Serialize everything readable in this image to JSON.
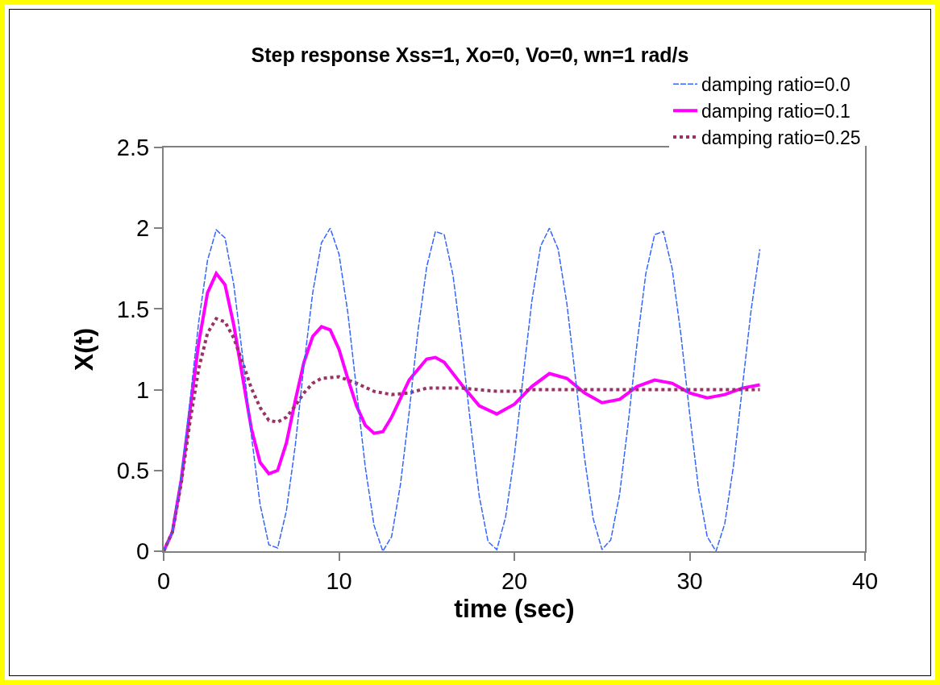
{
  "chart_data": {
    "type": "line",
    "title": "Step response Xss=1, Xo=0, Vo=0, wn=1 rad/s",
    "xlabel": "time (sec)",
    "ylabel": "X(t)",
    "xlim": [
      0,
      40
    ],
    "xticks": [
      0,
      10,
      20,
      30,
      40
    ],
    "ylim": [
      0,
      2.5
    ],
    "yticks": [
      0,
      0.5,
      1,
      1.5,
      2,
      2.5
    ],
    "grid": false,
    "legend": "top right",
    "marker": "none",
    "series": [
      {
        "name": "damping ratio=0.0",
        "color": "#3366ff",
        "line_style": "dashed",
        "x": [
          0,
          0.5,
          1,
          1.5,
          2,
          2.5,
          3,
          3.5,
          4,
          4.5,
          5,
          5.5,
          6,
          6.5,
          7,
          7.5,
          8,
          8.5,
          9,
          9.5,
          10,
          10.5,
          11,
          11.5,
          12,
          12.5,
          13,
          13.5,
          14,
          14.5,
          15,
          15.5,
          16,
          16.5,
          17,
          17.5,
          18,
          18.5,
          19,
          19.5,
          20,
          20.5,
          21,
          21.5,
          22,
          22.5,
          23,
          23.5,
          24,
          24.5,
          25,
          25.5,
          26,
          26.5,
          27,
          27.5,
          28,
          28.5,
          29,
          29.5,
          30,
          30.5,
          31,
          31.5,
          32,
          32.5,
          33,
          33.5,
          34
        ],
        "values": [
          0,
          0.12,
          0.46,
          0.93,
          1.42,
          1.8,
          1.99,
          1.94,
          1.65,
          1.21,
          0.72,
          0.29,
          0.04,
          0.02,
          0.25,
          0.65,
          1.15,
          1.6,
          1.91,
          2,
          1.84,
          1.48,
          1,
          0.52,
          0.16,
          0,
          0.09,
          0.41,
          0.86,
          1.36,
          1.76,
          1.98,
          1.96,
          1.71,
          1.28,
          0.79,
          0.34,
          0.06,
          0.01,
          0.21,
          0.59,
          1.08,
          1.55,
          1.89,
          2,
          1.87,
          1.53,
          1.06,
          0.58,
          0.2,
          0.01,
          0.07,
          0.35,
          0.8,
          1.29,
          1.72,
          1.96,
          1.98,
          1.75,
          1.34,
          0.85,
          0.39,
          0.09,
          0,
          0.17,
          0.53,
          1.01,
          1.49,
          1.87
        ]
      },
      {
        "name": "damping ratio=0.1",
        "color": "#ff00ff",
        "line_style": "solid",
        "x": [
          0,
          0.5,
          1,
          1.5,
          2,
          2.5,
          3,
          3.5,
          4,
          4.5,
          5,
          5.5,
          6,
          6.5,
          7,
          7.5,
          8,
          8.5,
          9,
          9.5,
          10,
          10.5,
          11,
          11.5,
          12,
          12.5,
          13,
          14,
          15,
          15.5,
          16,
          17,
          18,
          19,
          20,
          21,
          22,
          23,
          24,
          25,
          26,
          27,
          28,
          29,
          30,
          31,
          32,
          33,
          34
        ],
        "values": [
          0,
          0.12,
          0.44,
          0.87,
          1.29,
          1.6,
          1.72,
          1.65,
          1.4,
          1.08,
          0.76,
          0.55,
          0.48,
          0.5,
          0.67,
          0.93,
          1.17,
          1.33,
          1.39,
          1.37,
          1.25,
          1.07,
          0.9,
          0.78,
          0.73,
          0.74,
          0.83,
          1.06,
          1.19,
          1.2,
          1.17,
          1.03,
          0.9,
          0.85,
          0.91,
          1.02,
          1.1,
          1.07,
          0.98,
          0.92,
          0.94,
          1.02,
          1.06,
          1.04,
          0.98,
          0.95,
          0.97,
          1.01,
          1.03
        ]
      },
      {
        "name": "damping ratio=0.25",
        "color": "#993366",
        "line_style": "dotted",
        "x": [
          0,
          0.5,
          1,
          1.5,
          2,
          2.5,
          3,
          3.5,
          4,
          4.5,
          5,
          5.5,
          6,
          6.5,
          7,
          7.5,
          8,
          8.5,
          9,
          10,
          11,
          12,
          13,
          14,
          15,
          16,
          17,
          18,
          19,
          20,
          21,
          34
        ],
        "values": [
          0,
          0.12,
          0.42,
          0.8,
          1.13,
          1.35,
          1.44,
          1.42,
          1.32,
          1.17,
          1.01,
          0.89,
          0.81,
          0.8,
          0.83,
          0.9,
          0.98,
          1.04,
          1.07,
          1.08,
          1.04,
          0.99,
          0.97,
          0.98,
          1.01,
          1.01,
          1.01,
          1,
          0.99,
          0.99,
          1,
          1
        ]
      }
    ]
  }
}
